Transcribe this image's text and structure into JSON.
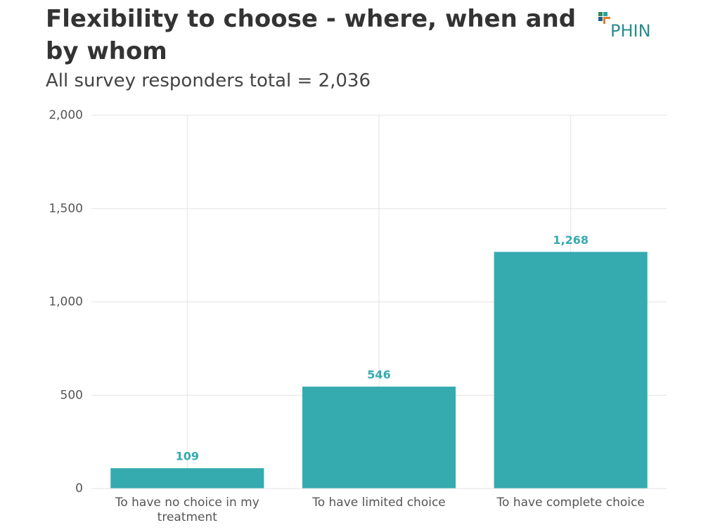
{
  "chart_data": {
    "type": "bar",
    "title": "Flexibility to choose - where, when and by whom",
    "subtitle": "All survey responders total = 2,036",
    "logo": "PHIN",
    "categories": [
      "To have no choice in my treatment",
      "To have limited choice",
      "To have complete choice"
    ],
    "values": [
      109,
      546,
      1268
    ],
    "value_labels": [
      "109",
      "546",
      "1,268"
    ],
    "color": "#35abb0",
    "ylim": [
      0,
      2000
    ],
    "yticks": [
      0,
      500,
      {
        "value": 1000,
        "label": "1,000"
      },
      {
        "value": 1500,
        "label": "1,500"
      },
      {
        "value": 2000,
        "label": "2,000"
      }
    ],
    "grid": true
  }
}
